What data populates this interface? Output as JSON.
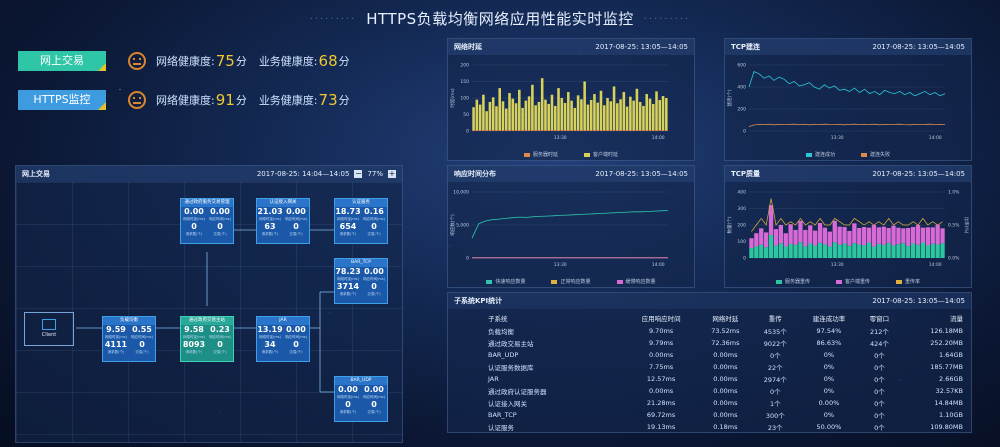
{
  "title": "HTTPS负载均衡网络应用性能实时监控",
  "health": [
    {
      "tag": "网上交易",
      "net_label": "网络健康度:",
      "net_value": "75",
      "biz_label": "业务健康度:",
      "biz_value": "68",
      "unit": "分",
      "color": "#2fc5a7"
    },
    {
      "tag": "HTTPS监控",
      "net_label": "网络健康度:",
      "net_value": "91",
      "biz_label": "业务健康度:",
      "biz_value": "73",
      "unit": "分",
      "color": "#3f9be0"
    }
  ],
  "flow_panel": {
    "title": "网上交易",
    "time": "2017-08-25: 14:04—14:05",
    "zoom": "77%",
    "minus": "−",
    "plus": "+",
    "client": "Client",
    "nodes": [
      {
        "id": "n1",
        "title": "通过政府服务交易管理",
        "a": "0.00",
        "b": "0.00",
        "c": "0",
        "d": "0",
        "la": "网络时延(ms)",
        "lb": "响应时间(ms)",
        "lc": "请求数(个)",
        "ld": "交易(个)",
        "green": false
      },
      {
        "id": "n2",
        "title": "认证接入网关",
        "a": "21.03",
        "b": "0.00",
        "c": "63",
        "d": "0",
        "la": "网络时延(ms)",
        "lb": "响应时间(ms)",
        "lc": "请求数(个)",
        "ld": "交易(个)",
        "green": false
      },
      {
        "id": "n3",
        "title": "认证服务",
        "a": "18.73",
        "b": "0.16",
        "c": "654",
        "d": "0",
        "la": "网络时延(ms)",
        "lb": "响应时间(ms)",
        "lc": "请求数(个)",
        "ld": "交易(个)",
        "green": false
      },
      {
        "id": "n4",
        "title": "BAR_TCP",
        "a": "78.23",
        "b": "0.00",
        "c": "3714",
        "d": "0",
        "la": "网络时延(ms)",
        "lb": "响应时间(ms)",
        "lc": "请求数(个)",
        "ld": "交易(个)",
        "green": false
      },
      {
        "id": "n5",
        "title": "负载均衡",
        "a": "9.59",
        "b": "0.55",
        "c": "4111",
        "d": "0",
        "la": "网络时延(ms)",
        "lb": "响应时间(ms)",
        "lc": "请求数(个)",
        "ld": "交易(个)",
        "green": false
      },
      {
        "id": "n6",
        "title": "通过政府交易主站",
        "a": "9.58",
        "b": "0.23",
        "c": "8093",
        "d": "0",
        "la": "网络时延(ms)",
        "lb": "响应时间(ms)",
        "lc": "请求数(个)",
        "ld": "交易(个)",
        "green": true
      },
      {
        "id": "n7",
        "title": "JAR",
        "a": "13.19",
        "b": "0.00",
        "c": "34",
        "d": "0",
        "la": "网络时延(ms)",
        "lb": "响应时间(ms)",
        "lc": "请求数(个)",
        "ld": "交易(个)",
        "green": false
      },
      {
        "id": "n8",
        "title": "BAR_UDP",
        "a": "0.00",
        "b": "0.00",
        "c": "0",
        "d": "0",
        "la": "网络时延(ms)",
        "lb": "响应时间(ms)",
        "lc": "请求数(个)",
        "ld": "交易(个)",
        "green": false
      }
    ]
  },
  "charts": {
    "latency": {
      "title": "网络时延",
      "time": "2017-08-25: 13:05—14:05",
      "ylabel": "时延(ms)",
      "ticks_y": [
        "200",
        "150",
        "100",
        "50",
        "0"
      ],
      "ticks_x": [
        "13:30",
        "14:00"
      ],
      "legend": [
        {
          "label": "服务器时延",
          "color": "#e0894a"
        },
        {
          "label": "客户端时延",
          "color": "#d8d25a"
        }
      ]
    },
    "tcp": {
      "title": "TCP建连",
      "time": "2017-08-25: 13:05—14:05",
      "ylabel": "建连(个)",
      "ticks_y": [
        "600",
        "400",
        "200",
        "0"
      ],
      "ticks_x": [
        "13:30",
        "14:00"
      ],
      "legend": [
        {
          "label": "建连成功",
          "color": "#2ec6d8"
        },
        {
          "label": "建连失败",
          "color": "#e0894a"
        }
      ]
    },
    "resp": {
      "title": "响应时间分布",
      "time": "2017-08-25: 13:05—14:05",
      "ylabel": "响应数(个)",
      "ticks_y": [
        "10,000",
        "5,000",
        "0"
      ],
      "ticks_x": [
        "13:30",
        "14:00"
      ],
      "legend": [
        {
          "label": "快速响应数量",
          "color": "#2ec6b0"
        },
        {
          "label": "正常响应数量",
          "color": "#e0b040"
        },
        {
          "label": "缓慢响应数量",
          "color": "#d86ad8"
        }
      ]
    },
    "tcpq": {
      "title": "TCP质量",
      "time": "2017-08-25: 13:05—14:05",
      "ylabel": "数量(个)",
      "ylabel2": "比率(%)",
      "ticks_y": [
        "400",
        "300",
        "200",
        "100",
        "0"
      ],
      "ticks_y2": [
        "1.0%",
        "0.5%",
        "0.0%"
      ],
      "ticks_x": [
        "13:30",
        "14:00"
      ],
      "legend": [
        {
          "label": "服务器重传",
          "color": "#2ec6a0"
        },
        {
          "label": "客户端重传",
          "color": "#d86ad8"
        },
        {
          "label": "重传率",
          "color": "#e0b040"
        }
      ]
    }
  },
  "chart_data": [
    {
      "type": "bar",
      "title": "网络时延",
      "ylabel": "时延(ms)",
      "ylim": [
        0,
        200
      ],
      "x_range": [
        "13:05",
        "14:05"
      ],
      "series": [
        {
          "name": "客户端时延",
          "values": [
            72,
            95,
            80,
            110,
            60,
            88,
            102,
            75,
            130,
            90,
            68,
            115,
            98,
            84,
            125,
            70,
            92,
            105,
            140,
            78,
            88,
            160,
            95,
            82,
            110,
            76,
            130,
            100,
            85,
            118,
            92,
            70,
            108,
            96,
            150,
            80,
            94,
            112,
            86,
            122,
            78,
            100,
            90,
            135,
            84,
            96,
            118,
            74,
            104,
            92,
            128,
            88,
            76,
            112,
            98,
            82,
            120,
            94,
            106,
            100
          ]
        },
        {
          "name": "服务器时延",
          "values": [
            3,
            3,
            3,
            3,
            3,
            3,
            3,
            3,
            3,
            3,
            3,
            3,
            3,
            3,
            3,
            3,
            3,
            3,
            3,
            3,
            3,
            3,
            3,
            3,
            3,
            3,
            3,
            3,
            3,
            3,
            3,
            3,
            3,
            3,
            3,
            3,
            3,
            3,
            3,
            3,
            3,
            3,
            3,
            3,
            3,
            3,
            3,
            3,
            3,
            3,
            3,
            3,
            3,
            3,
            3,
            3,
            3,
            3,
            3,
            3
          ]
        }
      ]
    },
    {
      "type": "line",
      "title": "TCP建连",
      "ylabel": "建连(个)",
      "ylim": [
        0,
        600
      ],
      "x_range": [
        "13:05",
        "14:05"
      ],
      "series": [
        {
          "name": "建连成功",
          "values": [
            400,
            540,
            520,
            480,
            500,
            460,
            490,
            470,
            430,
            450,
            410,
            420,
            440,
            400,
            380,
            420,
            390,
            410,
            370,
            380,
            360,
            390,
            350,
            380,
            340,
            360,
            330,
            370,
            350,
            340,
            360,
            330,
            350,
            320,
            340,
            360,
            330,
            350,
            320,
            340
          ]
        },
        {
          "name": "建连失败",
          "values": [
            40,
            55,
            60,
            58,
            62,
            56,
            60,
            58,
            60,
            62,
            58,
            60,
            56,
            60,
            58,
            62,
            60,
            58,
            60,
            56,
            60,
            62,
            58,
            60,
            58,
            62,
            56,
            60,
            58,
            60,
            62,
            58,
            56,
            60,
            58,
            60,
            62,
            58,
            60,
            58
          ]
        }
      ]
    },
    {
      "type": "line",
      "title": "响应时间分布",
      "ylabel": "响应数(个)",
      "ylim": [
        0,
        10000
      ],
      "x_range": [
        "13:05",
        "14:05"
      ],
      "series": [
        {
          "name": "快速响应数量",
          "values": [
            3000,
            5200,
            5600,
            5800,
            5900,
            6000,
            6100,
            6200,
            6150,
            6250,
            6300,
            6350,
            6400,
            6450,
            6500,
            6550,
            6600,
            6650,
            6700,
            6750,
            6800,
            6850,
            6900,
            6950,
            7000,
            7000,
            7050,
            7100,
            7150,
            7200
          ]
        },
        {
          "name": "正常响应数量",
          "values": [
            50,
            50,
            50,
            50,
            50,
            50,
            50,
            50,
            50,
            50,
            50,
            50,
            50,
            50,
            50,
            50,
            50,
            50,
            50,
            50,
            50,
            50,
            50,
            50,
            50,
            50,
            50,
            50,
            50,
            50
          ]
        },
        {
          "name": "缓慢响应数量",
          "values": [
            20,
            20,
            20,
            20,
            20,
            20,
            20,
            20,
            20,
            20,
            20,
            20,
            20,
            20,
            20,
            20,
            20,
            20,
            20,
            20,
            20,
            20,
            20,
            20,
            20,
            20,
            20,
            20,
            20,
            20
          ]
        }
      ]
    },
    {
      "type": "bar",
      "title": "TCP质量",
      "ylabel": "数量(个)",
      "ylim": [
        0,
        400
      ],
      "x_range": [
        "13:05",
        "14:05"
      ],
      "series": [
        {
          "name": "服务器重传",
          "values": [
            60,
            70,
            80,
            65,
            140,
            75,
            90,
            70,
            85,
            80,
            95,
            70,
            88,
            76,
            92,
            84,
            70,
            96,
            80,
            88,
            74,
            90,
            82,
            78,
            94,
            70,
            86,
            80,
            92,
            76,
            84,
            90,
            72,
            88,
            80,
            94,
            76,
            86,
            82,
            90
          ]
        },
        {
          "name": "客户端重传",
          "values": [
            60,
            80,
            100,
            90,
            180,
            100,
            110,
            80,
            120,
            90,
            130,
            100,
            110,
            90,
            120,
            100,
            90,
            130,
            110,
            100,
            90,
            120,
            100,
            110,
            90,
            130,
            100,
            110,
            90,
            120,
            100,
            90,
            110,
            100,
            120,
            90,
            110,
            100,
            120,
            90
          ]
        },
        {
          "name": "重传率",
          "values": [
            0.4,
            0.5,
            0.6,
            0.5,
            0.9,
            0.5,
            0.6,
            0.5,
            0.55,
            0.5,
            0.6,
            0.5,
            0.55,
            0.5,
            0.6,
            0.5,
            0.5,
            0.6,
            0.55,
            0.5,
            0.5,
            0.6,
            0.55,
            0.5,
            0.55,
            0.5,
            0.55,
            0.5,
            0.6,
            0.5,
            0.55,
            0.5,
            0.5,
            0.55,
            0.5,
            0.6,
            0.5,
            0.55,
            0.5,
            0.55
          ]
        }
      ]
    }
  ],
  "kpi": {
    "title": "子系统KPI统计",
    "time": "2017-08-25: 13:05—14:05",
    "headers": [
      "子系统",
      "应用响应时间",
      "网络时延",
      "重传",
      "建连成功率",
      "零窗口",
      "流量"
    ],
    "rows": [
      [
        "负载均衡",
        "9.70ms",
        "73.52ms",
        "4535个",
        "97.54%",
        "212个",
        "126.18MB"
      ],
      [
        "通过政交易主站",
        "9.79ms",
        "72.36ms",
        "9022个",
        "86.63%",
        "424个",
        "252.20MB"
      ],
      [
        "BAR_UDP",
        "0.00ms",
        "0.00ms",
        "0个",
        "0%",
        "0个",
        "1.64GB"
      ],
      [
        "认证服务数据库",
        "7.75ms",
        "0.00ms",
        "22个",
        "0%",
        "0个",
        "185.77MB"
      ],
      [
        "JAR",
        "12.57ms",
        "0.00ms",
        "2974个",
        "0%",
        "0个",
        "2.66GB"
      ],
      [
        "通过政府认证服务器",
        "0.00ms",
        "0.00ms",
        "0个",
        "0%",
        "0个",
        "32.57KB"
      ],
      [
        "认证接入网关",
        "21.28ms",
        "0.00ms",
        "1个",
        "0.00%",
        "0个",
        "14.84MB"
      ],
      [
        "BAR_TCP",
        "69.72ms",
        "0.00ms",
        "300个",
        "0%",
        "0个",
        "1.10GB"
      ],
      [
        "认证服务",
        "19.13ms",
        "0.18ms",
        "23个",
        "50.00%",
        "0个",
        "109.80MB"
      ]
    ]
  }
}
